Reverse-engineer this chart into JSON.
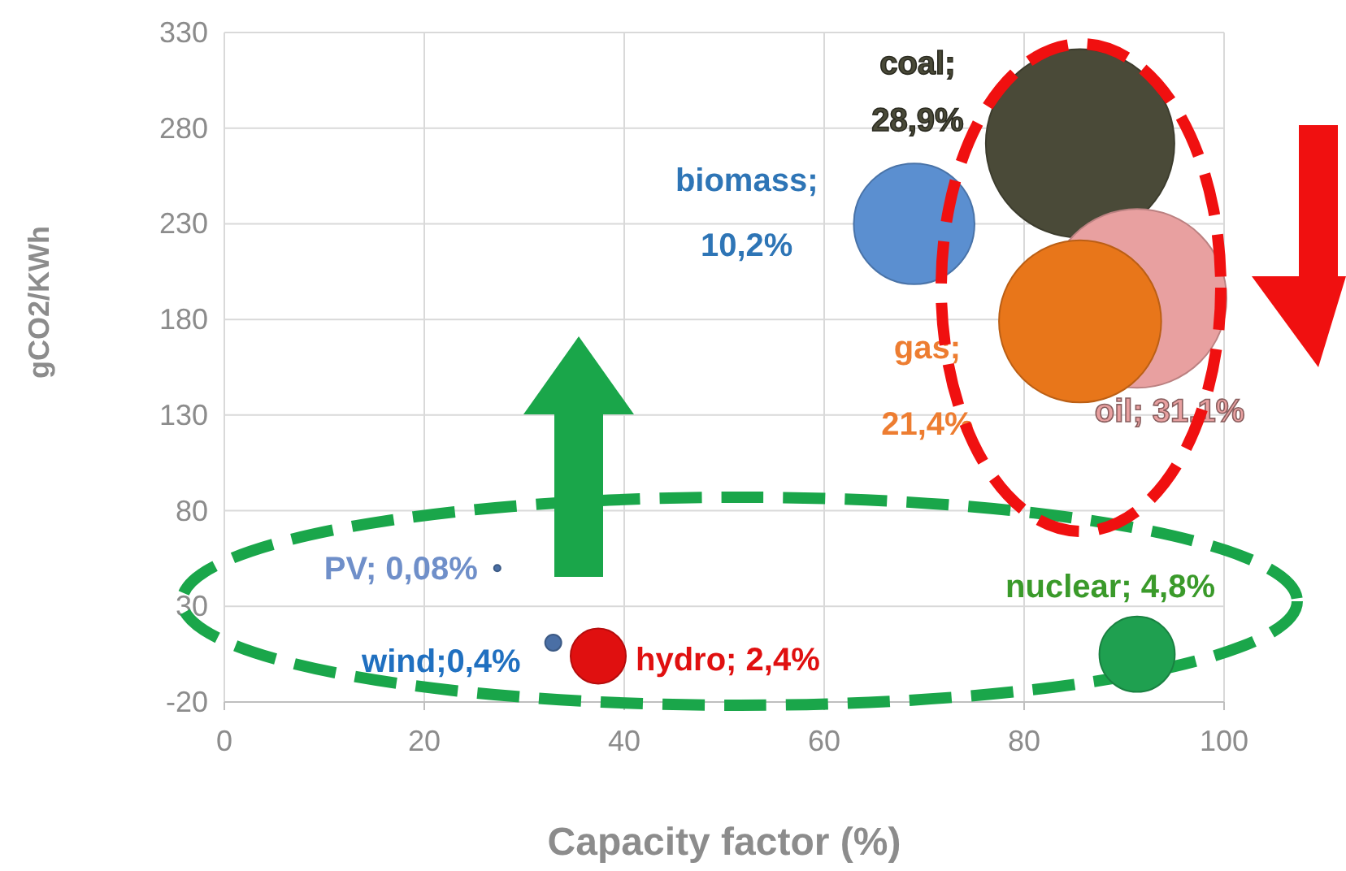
{
  "chart_data": {
    "type": "bubble",
    "xlabel": "Capacity factor (%)",
    "ylabel": "gCO2/KWh",
    "xlim": [
      0,
      100
    ],
    "xticks": [
      0,
      20,
      40,
      60,
      80,
      100
    ],
    "ylim": [
      -20,
      330
    ],
    "yticks": [
      -20,
      30,
      80,
      130,
      180,
      230,
      280,
      330
    ],
    "grid": true,
    "series": [
      {
        "name": "coal; 28,9%",
        "color": "#4a4a38",
        "x": [
          85.6
        ],
        "values": [
          272
        ],
        "sizes": [
          1
        ]
      },
      {
        "name": "biomass; 10,2%",
        "color": "#5b8fd0",
        "x": [
          69
        ],
        "values": [
          230
        ],
        "sizes": [
          0.41
        ]
      },
      {
        "name": "oil; 31,1%",
        "color": "#e8a0a0",
        "x": [
          91.3
        ],
        "values": [
          191
        ],
        "sizes": [
          0.9
        ]
      },
      {
        "name": "gas; 21,4%",
        "color": "#e8761a",
        "x": [
          85.6
        ],
        "values": [
          179
        ],
        "sizes": [
          0.74
        ]
      },
      {
        "name": "PV; 0,08%",
        "color": "#4a6fa5",
        "x": [
          27.3
        ],
        "values": [
          50
        ],
        "sizes": [
          0.0012
        ]
      },
      {
        "name": "wind;0,4%",
        "color": "#4a6fa5",
        "x": [
          32.9
        ],
        "values": [
          11
        ],
        "sizes": [
          0.0074
        ]
      },
      {
        "name": "hydro; 2,4%",
        "color": "#e01010",
        "x": [
          37.4
        ],
        "values": [
          4
        ],
        "sizes": [
          0.086
        ]
      },
      {
        "name": "nuclear; 4,8%",
        "color": "#1fa050",
        "x": [
          91.3
        ],
        "values": [
          5
        ],
        "sizes": [
          0.16
        ]
      }
    ]
  }
}
